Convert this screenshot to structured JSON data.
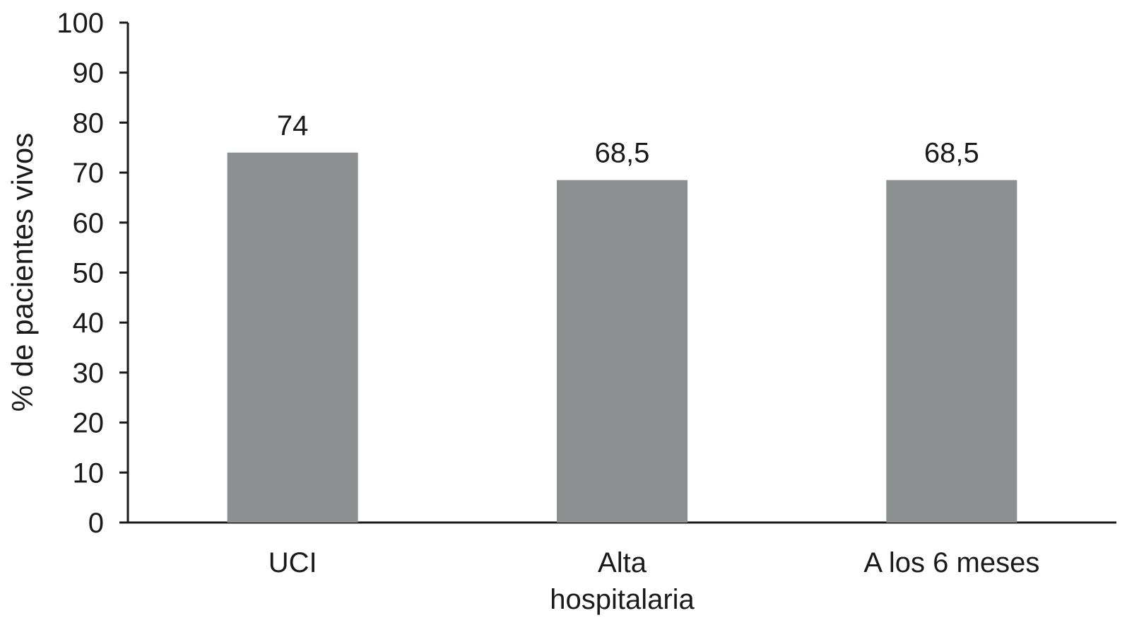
{
  "chart_data": {
    "type": "bar",
    "categories": [
      [
        "UCI"
      ],
      [
        "Alta",
        "hospitalaria"
      ],
      [
        "A los 6 meses"
      ]
    ],
    "values": [
      74,
      68.5,
      68.5
    ],
    "value_labels": [
      "74",
      "68,5",
      "68,5"
    ],
    "ylabel": "% de pacientes vivos",
    "xlabel": "",
    "title": "",
    "ylim": [
      0,
      100
    ],
    "yticks": [
      0,
      10,
      20,
      30,
      40,
      50,
      60,
      70,
      80,
      90,
      100
    ],
    "grid": false,
    "legend": "none",
    "colors": {
      "bar": "#8e8f91",
      "axis": "#1a1a1a",
      "text": "#1a1a1a"
    }
  }
}
